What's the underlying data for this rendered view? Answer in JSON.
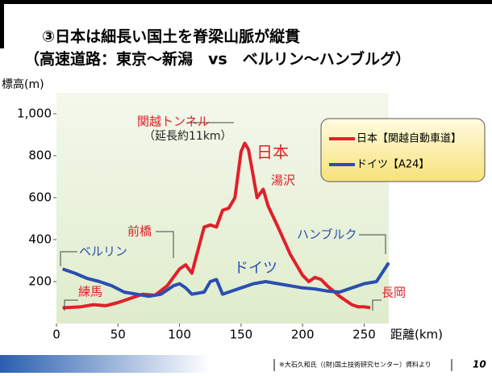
{
  "chart_data": {
    "type": "line",
    "title": "③日本は細長い国土を脊梁山脈が縦貫",
    "subtitle": "（高速道路：東京～新潟　vs　ベルリン～ハンブルグ）",
    "y_label": "標高(m)",
    "x_label": "距離(km)",
    "xlim": [
      0,
      270
    ],
    "ylim": [
      0,
      1100
    ],
    "xticks": [
      0,
      50,
      100,
      150,
      200,
      250
    ],
    "yticks": [
      200,
      400,
      600,
      800,
      {
        "value": 1000,
        "label": "1,000"
      }
    ],
    "legend": "upper right",
    "series": [
      {
        "name": "日本【関越自動車道】",
        "color": "#e0202a",
        "x": [
          5,
          20,
          30,
          40,
          50,
          60,
          70,
          80,
          90,
          100,
          105,
          110,
          115,
          120,
          125,
          130,
          135,
          140,
          145,
          150,
          153,
          156,
          160,
          163,
          168,
          172,
          180,
          190,
          200,
          205,
          210,
          215,
          220,
          230,
          240,
          245,
          250,
          255
        ],
        "values": [
          75,
          80,
          90,
          85,
          100,
          120,
          140,
          135,
          180,
          260,
          280,
          240,
          350,
          460,
          470,
          460,
          540,
          550,
          600,
          820,
          860,
          830,
          700,
          600,
          640,
          560,
          460,
          330,
          230,
          200,
          220,
          210,
          180,
          130,
          90,
          80,
          80,
          75
        ]
      },
      {
        "name": "ドイツ【A24】",
        "color": "#2a4fb0",
        "x": [
          5,
          15,
          25,
          35,
          45,
          55,
          65,
          75,
          85,
          95,
          100,
          105,
          110,
          120,
          125,
          130,
          135,
          140,
          150,
          160,
          170,
          180,
          190,
          200,
          210,
          220,
          230,
          240,
          250,
          260,
          270
        ],
        "values": [
          260,
          240,
          215,
          200,
          180,
          150,
          140,
          130,
          140,
          180,
          190,
          170,
          140,
          150,
          200,
          210,
          140,
          150,
          170,
          190,
          200,
          190,
          180,
          170,
          165,
          155,
          150,
          170,
          190,
          200,
          290
        ]
      }
    ],
    "annotations": [
      "関越トンネル",
      "（延長約11km）",
      "日本",
      "湯沢",
      "前橋",
      "練馬",
      "長岡",
      "ベルリン",
      "ドイツ",
      "ハンブルク"
    ],
    "footnote": "※大石久和氏（(財)国土技術研究センター）資料より",
    "page_number": "10"
  }
}
